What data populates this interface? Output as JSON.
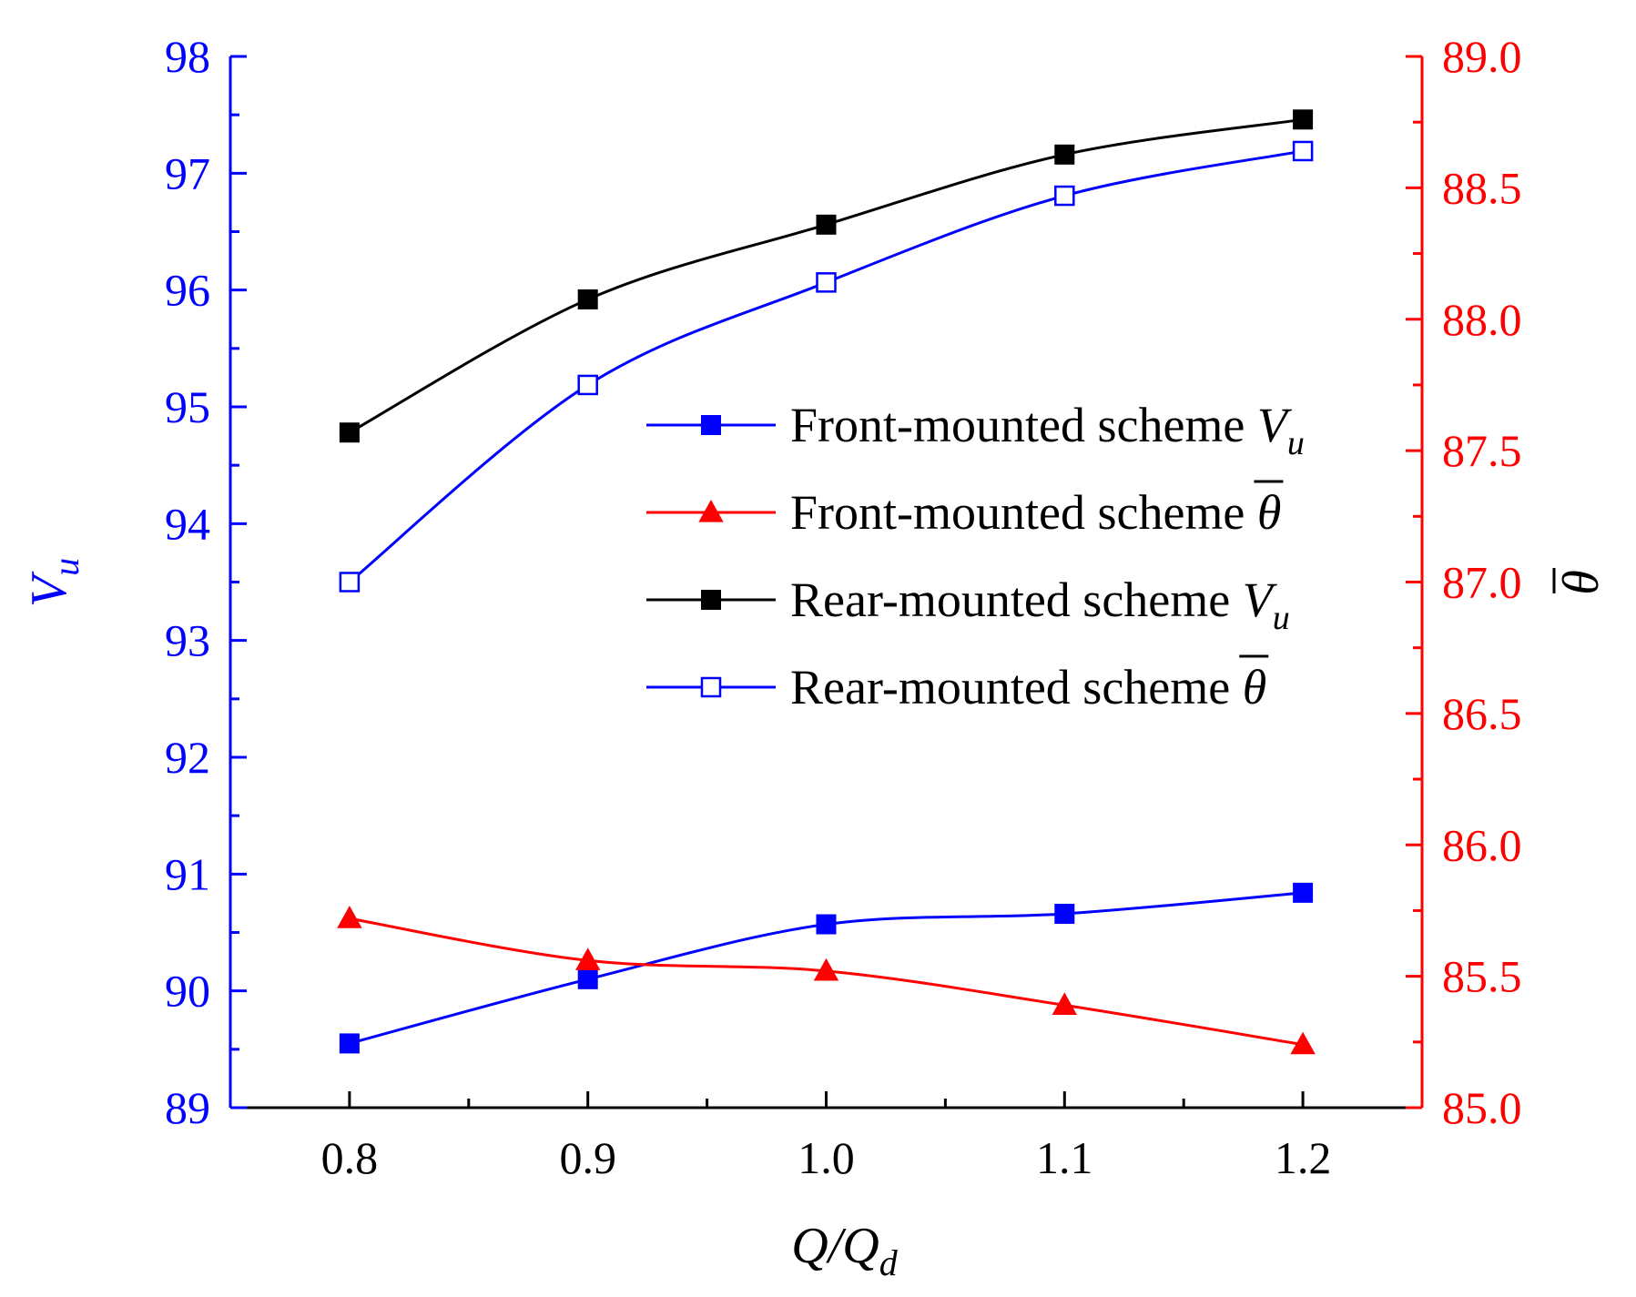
{
  "chart_data": {
    "type": "line",
    "title": "",
    "xlabel": "Q/Q",
    "xlabel_sub": "d",
    "ylabel_left": "V",
    "ylabel_left_sub": "u",
    "ylabel_right": "θ",
    "x": [
      0.8,
      0.9,
      1.0,
      1.1,
      1.2
    ],
    "x_tick_labels": [
      "0.8",
      "0.9",
      "1.0",
      "1.1",
      "1.2"
    ],
    "xlim": [
      0.75,
      1.25
    ],
    "y_left_lim": [
      89,
      98
    ],
    "y_left_tick_labels": [
      "89",
      "90",
      "91",
      "92",
      "93",
      "94",
      "95",
      "96",
      "97",
      "98"
    ],
    "y_right_lim": [
      85.0,
      89.0
    ],
    "y_right_tick_labels": [
      "85.0",
      "85.5",
      "86.0",
      "86.5",
      "87.0",
      "87.5",
      "88.0",
      "88.5",
      "89.0"
    ],
    "legend_position": "center-right",
    "series": [
      {
        "name": "Front-mounted scheme V",
        "name_symbol": "V",
        "name_sub": "u",
        "name_prefix": "Front-mounted scheme ",
        "axis": "left",
        "color": "#0000ff",
        "marker": "filled-square",
        "values": [
          89.55,
          90.1,
          90.57,
          90.66,
          90.84
        ]
      },
      {
        "name": "Front-mounted scheme θ",
        "name_symbol": "θ",
        "name_sub": "",
        "name_prefix": "Front-mounted scheme ",
        "axis": "right",
        "color": "#ff0000",
        "marker": "filled-triangle",
        "values": [
          85.72,
          85.56,
          85.52,
          85.39,
          85.24
        ]
      },
      {
        "name": "Rear-mounted scheme V",
        "name_symbol": "V",
        "name_sub": "u",
        "name_prefix": "Rear-mounted scheme ",
        "axis": "left",
        "color": "#000000",
        "marker": "filled-square",
        "values": [
          94.78,
          95.92,
          96.56,
          97.16,
          97.46
        ]
      },
      {
        "name": "Rear-mounted scheme θ",
        "name_symbol": "θ",
        "name_sub": "",
        "name_prefix": "Rear-mounted scheme ",
        "axis": "right",
        "color": "#0000ff",
        "marker": "open-square",
        "values": [
          87.0,
          87.75,
          88.14,
          88.47,
          88.64
        ]
      }
    ]
  }
}
